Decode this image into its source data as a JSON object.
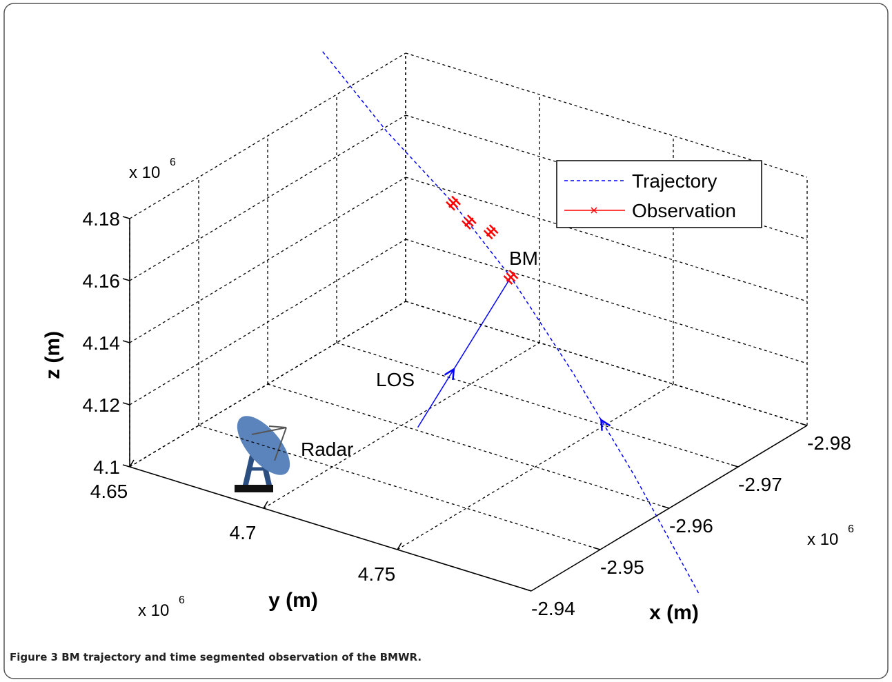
{
  "chart_data": {
    "type": "line3d",
    "caption": {
      "label": "Figure 3",
      "text": "BM trajectory and time segmented observation of the BMWR."
    },
    "xlabel": "x (m)",
    "ylabel": "y (m)",
    "zlabel": "z (m)",
    "xlim": [
      -2.94,
      -2.98
    ],
    "ylim": [
      4.65,
      4.8
    ],
    "zlim": [
      4.1,
      4.18
    ],
    "xticks": [
      -2.94,
      -2.95,
      -2.96,
      -2.97,
      -2.98
    ],
    "yticks": [
      4.65,
      4.7,
      4.75
    ],
    "zticks": [
      4.1,
      4.12,
      4.14,
      4.16,
      4.18
    ],
    "x_offset": {
      "base": "x 10",
      "exponent": "6"
    },
    "y_offset": {
      "base": "x 10",
      "exponent": "6"
    },
    "z_offset": {
      "base": "x 10",
      "exponent": "6"
    },
    "grid": true,
    "legend": "upper right",
    "series": [
      {
        "name": "Trajectory",
        "color": "#0000ff",
        "x": [
          -2.98,
          -2.9746,
          -2.9689,
          -2.9639,
          -2.9587,
          -2.9534,
          -2.9479
        ],
        "y": [
          4.619,
          4.6567,
          4.6964,
          4.7308,
          4.7673,
          4.8041,
          4.8422
        ],
        "z": [
          4.1722,
          4.1639,
          4.1588,
          4.1508,
          4.1368,
          4.1203,
          4.1
        ]
      },
      {
        "name": "Observation",
        "color": "#ff0000",
        "x": [
          -2.9689,
          -2.9675,
          -2.9656,
          -2.9639
        ],
        "y": [
          4.6964,
          4.7059,
          4.719,
          4.7308
        ],
        "z": [
          4.1588,
          4.1571,
          4.16,
          4.1508
        ]
      }
    ],
    "radar": {
      "label": "Radar",
      "x": -2.9605,
      "y": 4.7048,
      "z": 4.1
    },
    "bm": {
      "label": "BM",
      "x": -2.9639,
      "y": 4.7308,
      "z": 4.1508
    },
    "los_label": "LOS"
  }
}
